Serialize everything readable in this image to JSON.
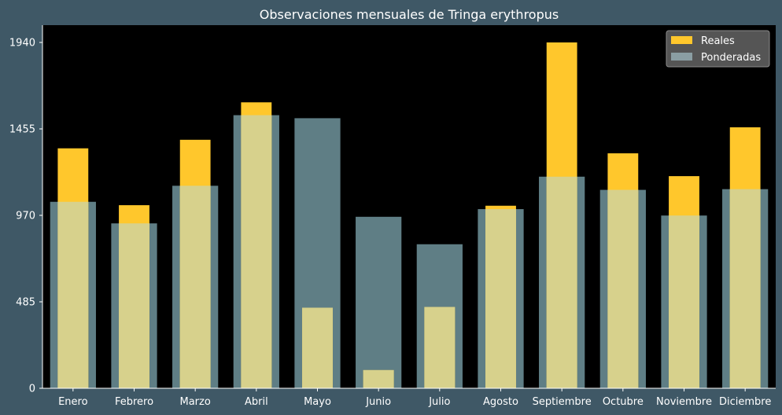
{
  "chart_data": {
    "type": "bar",
    "title": "Observaciones mensuales de Tringa erythropus",
    "xlabel": "",
    "ylabel": "",
    "categories": [
      "Enero",
      "Febrero",
      "Marzo",
      "Abril",
      "Mayo",
      "Junio",
      "Julio",
      "Agosto",
      "Septiembre",
      "Octubre",
      "Noviembre",
      "Diciembre"
    ],
    "series": [
      {
        "name": "Reales",
        "values": [
          1346,
          1027,
          1394,
          1604,
          452,
          102,
          456,
          1024,
          1940,
          1318,
          1190,
          1464
        ],
        "color": "#ffc72c"
      },
      {
        "name": "Ponderadas",
        "values": [
          1046,
          925,
          1136,
          1532,
          1515,
          962,
          808,
          1005,
          1187,
          1113,
          969,
          1117
        ],
        "color": "#5f7e85"
      }
    ],
    "overlap_color": "#d7d18c",
    "ylim": [
      0,
      2037
    ],
    "yticks": [
      0,
      485,
      970,
      1455,
      1940
    ],
    "grid": false,
    "legend_position": "top-right",
    "background": "#000000",
    "figure_background": "#3f5866"
  }
}
